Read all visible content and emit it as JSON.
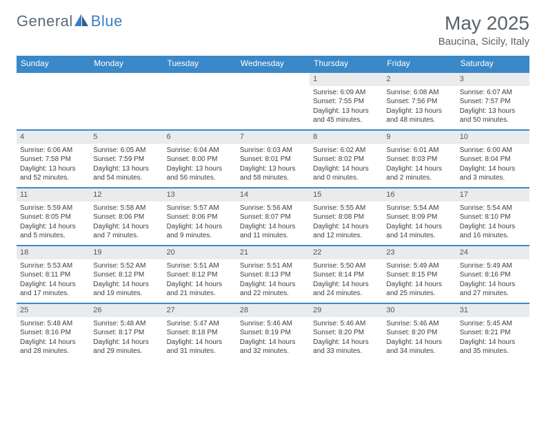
{
  "brand": {
    "general": "General",
    "blue": "Blue"
  },
  "month_title": "May 2025",
  "location": "Baucina, Sicily, Italy",
  "colors": {
    "header_bg": "#3a88c8",
    "header_text": "#ffffff",
    "date_bg": "#e9ebed",
    "rule": "#3a88c8",
    "logo_gray": "#5a6a78",
    "logo_blue": "#3a7fc2",
    "title_color": "#5a6268",
    "body_text": "#3d3d3d"
  },
  "day_headers": [
    "Sunday",
    "Monday",
    "Tuesday",
    "Wednesday",
    "Thursday",
    "Friday",
    "Saturday"
  ],
  "weeks": [
    [
      null,
      null,
      null,
      null,
      {
        "d": "1",
        "sr": "Sunrise: 6:09 AM",
        "ss": "Sunset: 7:55 PM",
        "dl": "Daylight: 13 hours and 45 minutes."
      },
      {
        "d": "2",
        "sr": "Sunrise: 6:08 AM",
        "ss": "Sunset: 7:56 PM",
        "dl": "Daylight: 13 hours and 48 minutes."
      },
      {
        "d": "3",
        "sr": "Sunrise: 6:07 AM",
        "ss": "Sunset: 7:57 PM",
        "dl": "Daylight: 13 hours and 50 minutes."
      }
    ],
    [
      {
        "d": "4",
        "sr": "Sunrise: 6:06 AM",
        "ss": "Sunset: 7:58 PM",
        "dl": "Daylight: 13 hours and 52 minutes."
      },
      {
        "d": "5",
        "sr": "Sunrise: 6:05 AM",
        "ss": "Sunset: 7:59 PM",
        "dl": "Daylight: 13 hours and 54 minutes."
      },
      {
        "d": "6",
        "sr": "Sunrise: 6:04 AM",
        "ss": "Sunset: 8:00 PM",
        "dl": "Daylight: 13 hours and 56 minutes."
      },
      {
        "d": "7",
        "sr": "Sunrise: 6:03 AM",
        "ss": "Sunset: 8:01 PM",
        "dl": "Daylight: 13 hours and 58 minutes."
      },
      {
        "d": "8",
        "sr": "Sunrise: 6:02 AM",
        "ss": "Sunset: 8:02 PM",
        "dl": "Daylight: 14 hours and 0 minutes."
      },
      {
        "d": "9",
        "sr": "Sunrise: 6:01 AM",
        "ss": "Sunset: 8:03 PM",
        "dl": "Daylight: 14 hours and 2 minutes."
      },
      {
        "d": "10",
        "sr": "Sunrise: 6:00 AM",
        "ss": "Sunset: 8:04 PM",
        "dl": "Daylight: 14 hours and 3 minutes."
      }
    ],
    [
      {
        "d": "11",
        "sr": "Sunrise: 5:59 AM",
        "ss": "Sunset: 8:05 PM",
        "dl": "Daylight: 14 hours and 5 minutes."
      },
      {
        "d": "12",
        "sr": "Sunrise: 5:58 AM",
        "ss": "Sunset: 8:06 PM",
        "dl": "Daylight: 14 hours and 7 minutes."
      },
      {
        "d": "13",
        "sr": "Sunrise: 5:57 AM",
        "ss": "Sunset: 8:06 PM",
        "dl": "Daylight: 14 hours and 9 minutes."
      },
      {
        "d": "14",
        "sr": "Sunrise: 5:56 AM",
        "ss": "Sunset: 8:07 PM",
        "dl": "Daylight: 14 hours and 11 minutes."
      },
      {
        "d": "15",
        "sr": "Sunrise: 5:55 AM",
        "ss": "Sunset: 8:08 PM",
        "dl": "Daylight: 14 hours and 12 minutes."
      },
      {
        "d": "16",
        "sr": "Sunrise: 5:54 AM",
        "ss": "Sunset: 8:09 PM",
        "dl": "Daylight: 14 hours and 14 minutes."
      },
      {
        "d": "17",
        "sr": "Sunrise: 5:54 AM",
        "ss": "Sunset: 8:10 PM",
        "dl": "Daylight: 14 hours and 16 minutes."
      }
    ],
    [
      {
        "d": "18",
        "sr": "Sunrise: 5:53 AM",
        "ss": "Sunset: 8:11 PM",
        "dl": "Daylight: 14 hours and 17 minutes."
      },
      {
        "d": "19",
        "sr": "Sunrise: 5:52 AM",
        "ss": "Sunset: 8:12 PM",
        "dl": "Daylight: 14 hours and 19 minutes."
      },
      {
        "d": "20",
        "sr": "Sunrise: 5:51 AM",
        "ss": "Sunset: 8:12 PM",
        "dl": "Daylight: 14 hours and 21 minutes."
      },
      {
        "d": "21",
        "sr": "Sunrise: 5:51 AM",
        "ss": "Sunset: 8:13 PM",
        "dl": "Daylight: 14 hours and 22 minutes."
      },
      {
        "d": "22",
        "sr": "Sunrise: 5:50 AM",
        "ss": "Sunset: 8:14 PM",
        "dl": "Daylight: 14 hours and 24 minutes."
      },
      {
        "d": "23",
        "sr": "Sunrise: 5:49 AM",
        "ss": "Sunset: 8:15 PM",
        "dl": "Daylight: 14 hours and 25 minutes."
      },
      {
        "d": "24",
        "sr": "Sunrise: 5:49 AM",
        "ss": "Sunset: 8:16 PM",
        "dl": "Daylight: 14 hours and 27 minutes."
      }
    ],
    [
      {
        "d": "25",
        "sr": "Sunrise: 5:48 AM",
        "ss": "Sunset: 8:16 PM",
        "dl": "Daylight: 14 hours and 28 minutes."
      },
      {
        "d": "26",
        "sr": "Sunrise: 5:48 AM",
        "ss": "Sunset: 8:17 PM",
        "dl": "Daylight: 14 hours and 29 minutes."
      },
      {
        "d": "27",
        "sr": "Sunrise: 5:47 AM",
        "ss": "Sunset: 8:18 PM",
        "dl": "Daylight: 14 hours and 31 minutes."
      },
      {
        "d": "28",
        "sr": "Sunrise: 5:46 AM",
        "ss": "Sunset: 8:19 PM",
        "dl": "Daylight: 14 hours and 32 minutes."
      },
      {
        "d": "29",
        "sr": "Sunrise: 5:46 AM",
        "ss": "Sunset: 8:20 PM",
        "dl": "Daylight: 14 hours and 33 minutes."
      },
      {
        "d": "30",
        "sr": "Sunrise: 5:46 AM",
        "ss": "Sunset: 8:20 PM",
        "dl": "Daylight: 14 hours and 34 minutes."
      },
      {
        "d": "31",
        "sr": "Sunrise: 5:45 AM",
        "ss": "Sunset: 8:21 PM",
        "dl": "Daylight: 14 hours and 35 minutes."
      }
    ]
  ]
}
